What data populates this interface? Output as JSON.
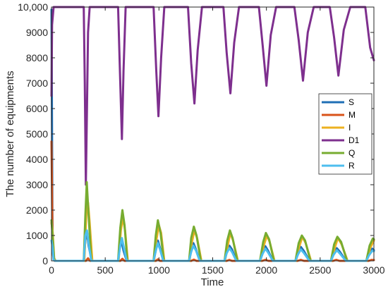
{
  "chart_data": {
    "type": "line",
    "xlabel": "Time",
    "ylabel": "The number of equipments",
    "xlim": [
      0,
      3000
    ],
    "ylim": [
      0,
      10000
    ],
    "x_ticks": [
      0,
      500,
      1000,
      1500,
      2000,
      2500,
      3000
    ],
    "y_ticks": [
      0,
      1000,
      2000,
      3000,
      4000,
      5000,
      6000,
      7000,
      8000,
      9000,
      10000
    ],
    "x_tick_labels": [
      "0",
      "500",
      "1000",
      "1500",
      "2000",
      "2500",
      "3000"
    ],
    "y_tick_labels": [
      "0",
      "1000",
      "2000",
      "3000",
      "4000",
      "5000",
      "6000",
      "7000",
      "8000",
      "9000",
      "10,000"
    ],
    "legend_position": "right",
    "grid": false,
    "series": [
      {
        "name": "S",
        "color": "#1f6fb5",
        "x": [
          0,
          10,
          25,
          40,
          300,
          315,
          330,
          345,
          375,
          620,
          635,
          650,
          670,
          700,
          950,
          970,
          990,
          1010,
          1040,
          1280,
          1300,
          1320,
          1340,
          1380,
          1610,
          1630,
          1655,
          1680,
          1720,
          1940,
          1965,
          1990,
          2015,
          2060,
          2270,
          2295,
          2320,
          2350,
          2400,
          2600,
          2625,
          2655,
          2685,
          2740,
          2930,
          2955,
          2985,
          3000
        ],
        "y": [
          9900,
          400,
          20,
          0,
          0,
          800,
          1150,
          600,
          0,
          0,
          500,
          800,
          400,
          0,
          0,
          400,
          800,
          500,
          0,
          0,
          400,
          700,
          500,
          0,
          0,
          350,
          600,
          450,
          0,
          0,
          300,
          580,
          400,
          0,
          0,
          300,
          550,
          380,
          0,
          0,
          280,
          500,
          350,
          0,
          0,
          250,
          480,
          420
        ]
      },
      {
        "name": "M",
        "color": "#d95319",
        "x": [
          0,
          8,
          15,
          30,
          320,
          340,
          360,
          640,
          660,
          680,
          970,
          990,
          1010,
          1300,
          1325,
          1350,
          1630,
          1655,
          1680,
          1960,
          1990,
          2020,
          2290,
          2320,
          2350,
          2620,
          2650,
          2680,
          2950,
          2980,
          3000
        ],
        "y": [
          4700,
          1500,
          200,
          0,
          0,
          100,
          0,
          0,
          80,
          0,
          0,
          60,
          0,
          0,
          50,
          0,
          0,
          40,
          0,
          0,
          40,
          0,
          0,
          40,
          0,
          0,
          40,
          0,
          0,
          40,
          30
        ]
      },
      {
        "name": "I",
        "color": "#edb120",
        "x": [
          0,
          10,
          25,
          40,
          305,
          325,
          340,
          355,
          380,
          625,
          645,
          665,
          685,
          710,
          955,
          975,
          1000,
          1020,
          1050,
          1285,
          1305,
          1330,
          1355,
          1395,
          1615,
          1640,
          1665,
          1690,
          1735,
          1945,
          1975,
          2005,
          2030,
          2075,
          2275,
          2305,
          2335,
          2365,
          2415,
          2605,
          2635,
          2665,
          2700,
          2755,
          2935,
          2965,
          3000
        ],
        "y": [
          1500,
          1200,
          100,
          0,
          0,
          1900,
          2300,
          1500,
          0,
          0,
          1200,
          1700,
          1200,
          0,
          0,
          800,
          1400,
          1100,
          0,
          0,
          700,
          1200,
          900,
          0,
          0,
          600,
          1100,
          800,
          0,
          0,
          600,
          1000,
          750,
          0,
          0,
          550,
          950,
          700,
          0,
          0,
          500,
          900,
          650,
          0,
          0,
          500,
          800
        ]
      },
      {
        "name": "D1",
        "color": "#7e2f8e",
        "x": [
          0,
          5,
          20,
          300,
          310,
          320,
          330,
          340,
          355,
          620,
          640,
          655,
          670,
          690,
          950,
          975,
          995,
          1020,
          1050,
          1270,
          1300,
          1330,
          1360,
          1400,
          1600,
          1630,
          1665,
          1700,
          1745,
          1930,
          1965,
          2000,
          2040,
          2090,
          2260,
          2300,
          2340,
          2385,
          2440,
          2590,
          2630,
          2670,
          2720,
          2780,
          2920,
          2965,
          3000
        ],
        "y": [
          6500,
          9300,
          10000,
          10000,
          7000,
          3000,
          6000,
          9000,
          10000,
          10000,
          7000,
          4800,
          7500,
          10000,
          10000,
          7500,
          5700,
          8000,
          10000,
          10000,
          7800,
          6200,
          8300,
          10000,
          10000,
          8200,
          6600,
          8600,
          10000,
          10000,
          8500,
          6900,
          8900,
          10000,
          10000,
          8700,
          7100,
          9000,
          10000,
          10000,
          8800,
          7300,
          9100,
          10000,
          10000,
          8400,
          7900
        ]
      },
      {
        "name": "Q",
        "color": "#77ac30",
        "x": [
          0,
          10,
          25,
          40,
          300,
          315,
          328,
          345,
          370,
          620,
          640,
          660,
          680,
          705,
          950,
          970,
          990,
          1015,
          1045,
          1280,
          1300,
          1325,
          1350,
          1390,
          1610,
          1635,
          1660,
          1685,
          1730,
          1940,
          1970,
          1995,
          2025,
          2070,
          2270,
          2300,
          2330,
          2360,
          2410,
          2600,
          2630,
          2660,
          2695,
          2750,
          2930,
          2960,
          2990,
          3000
        ],
        "y": [
          1600,
          1000,
          50,
          0,
          0,
          1800,
          3100,
          1800,
          0,
          0,
          1300,
          2000,
          1400,
          0,
          0,
          1000,
          1600,
          1100,
          0,
          0,
          900,
          1350,
          1000,
          0,
          0,
          800,
          1200,
          900,
          0,
          0,
          750,
          1100,
          850,
          0,
          0,
          700,
          1000,
          800,
          0,
          0,
          650,
          950,
          750,
          0,
          0,
          600,
          880,
          850
        ]
      },
      {
        "name": "R",
        "color": "#4dbeee",
        "x": [
          0,
          8,
          20,
          35,
          300,
          315,
          330,
          345,
          370,
          620,
          640,
          655,
          675,
          700,
          950,
          970,
          990,
          1010,
          1040,
          1280,
          1300,
          1320,
          1345,
          1380,
          1610,
          1630,
          1655,
          1680,
          1720,
          1940,
          1965,
          1990,
          2015,
          2060,
          2270,
          2295,
          2320,
          2350,
          2400,
          2600,
          2625,
          2655,
          2685,
          2740,
          2930,
          2955,
          2985,
          3000
        ],
        "y": [
          800,
          600,
          30,
          0,
          0,
          1000,
          1200,
          700,
          0,
          0,
          600,
          900,
          500,
          0,
          0,
          400,
          700,
          450,
          0,
          0,
          350,
          600,
          400,
          0,
          0,
          300,
          500,
          350,
          0,
          0,
          280,
          480,
          330,
          0,
          0,
          260,
          450,
          300,
          0,
          0,
          240,
          420,
          280,
          0,
          0,
          220,
          400,
          380
        ]
      }
    ]
  }
}
